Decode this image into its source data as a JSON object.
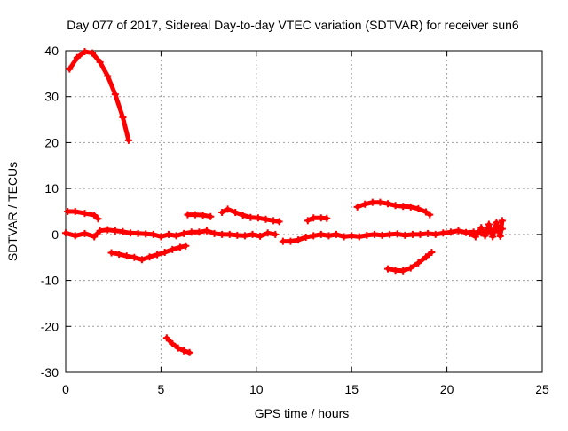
{
  "chart_data": {
    "type": "scatter",
    "title": "Day 077 of 2017, Sidereal Day-to-day VTEC variation (SDTVAR) for receiver sun6",
    "xlabel": "GPS time / hours",
    "ylabel": "SDTVAR / TECUs",
    "xlim": [
      0,
      25
    ],
    "ylim": [
      -30,
      40
    ],
    "xticks": [
      0,
      5,
      10,
      15,
      20,
      25
    ],
    "yticks": [
      -30,
      -20,
      -10,
      0,
      10,
      20,
      30,
      40
    ],
    "grid": true,
    "legend": "none",
    "marker": "plus",
    "series_color": "#ff0000",
    "segments": [
      {
        "name": "arc-high",
        "points": [
          [
            0.2,
            36
          ],
          [
            0.6,
            38.5
          ],
          [
            1.0,
            39.8
          ],
          [
            1.4,
            39.5
          ],
          [
            1.8,
            37.5
          ],
          [
            2.2,
            34.5
          ],
          [
            2.6,
            30.5
          ],
          [
            3.0,
            25.5
          ],
          [
            3.3,
            20.5
          ]
        ]
      },
      {
        "name": "arc-5-early",
        "points": [
          [
            0.1,
            5
          ],
          [
            0.5,
            5
          ],
          [
            1.0,
            4.6
          ],
          [
            1.5,
            4.2
          ],
          [
            1.7,
            3.4
          ]
        ]
      },
      {
        "name": "arc-0-main",
        "points": [
          [
            0.0,
            0.3
          ],
          [
            0.5,
            -0.3
          ],
          [
            1.0,
            0.2
          ],
          [
            1.5,
            -0.5
          ],
          [
            1.8,
            0.8
          ],
          [
            2.2,
            1.0
          ],
          [
            2.6,
            0.8
          ],
          [
            3.0,
            0.6
          ],
          [
            3.4,
            0.3
          ],
          [
            3.8,
            0.2
          ],
          [
            4.2,
            0.1
          ],
          [
            4.6,
            0
          ],
          [
            5.0,
            -0.5
          ],
          [
            5.4,
            0
          ],
          [
            5.8,
            -0.3
          ],
          [
            6.2,
            0.2
          ],
          [
            6.6,
            0.5
          ],
          [
            7.0,
            0.5
          ],
          [
            7.4,
            0.8
          ],
          [
            7.8,
            0.2
          ],
          [
            8.2,
            0
          ],
          [
            8.6,
            0
          ],
          [
            9.0,
            -0.2
          ],
          [
            9.4,
            -0.3
          ],
          [
            9.8,
            0
          ],
          [
            10.2,
            -0.4
          ],
          [
            10.6,
            0.3
          ],
          [
            11.0,
            0
          ]
        ]
      },
      {
        "name": "arc-neg5",
        "points": [
          [
            2.4,
            -4
          ],
          [
            2.8,
            -4.3
          ],
          [
            3.2,
            -4.7
          ],
          [
            3.6,
            -5.0
          ],
          [
            4.0,
            -5.5
          ],
          [
            4.4,
            -4.9
          ],
          [
            4.8,
            -4.4
          ],
          [
            5.2,
            -3.9
          ],
          [
            5.6,
            -3.3
          ],
          [
            6.0,
            -2.8
          ],
          [
            6.3,
            -2.5
          ]
        ]
      },
      {
        "name": "arc-neg25",
        "points": [
          [
            5.3,
            -22.5
          ],
          [
            5.6,
            -23.8
          ],
          [
            5.9,
            -24.7
          ],
          [
            6.2,
            -25.3
          ],
          [
            6.5,
            -25.7
          ]
        ]
      },
      {
        "name": "arc-4-mid",
        "points": [
          [
            6.4,
            4.3
          ],
          [
            6.8,
            4.3
          ],
          [
            7.2,
            4.2
          ],
          [
            7.6,
            3.9
          ]
        ]
      },
      {
        "name": "arc-5-nine",
        "points": [
          [
            8.2,
            4.8
          ],
          [
            8.5,
            5.5
          ],
          [
            8.9,
            4.8
          ],
          [
            9.3,
            4.2
          ],
          [
            9.7,
            3.7
          ],
          [
            10.1,
            3.6
          ],
          [
            10.5,
            3.3
          ],
          [
            10.9,
            3.0
          ],
          [
            11.2,
            2.8
          ]
        ]
      },
      {
        "name": "arc-0-mid",
        "points": [
          [
            11.4,
            -1.5
          ],
          [
            11.8,
            -1.5
          ],
          [
            12.2,
            -1.2
          ],
          [
            12.6,
            -0.6
          ],
          [
            13.0,
            -0.3
          ],
          [
            13.4,
            0
          ],
          [
            13.8,
            -0.3
          ],
          [
            14.2,
            0
          ],
          [
            14.6,
            -0.5
          ],
          [
            15.0,
            -0.3
          ],
          [
            15.4,
            -0.5
          ],
          [
            15.8,
            -0.2
          ],
          [
            16.2,
            0
          ],
          [
            16.6,
            -0.2
          ],
          [
            17.0,
            0
          ],
          [
            17.4,
            0.1
          ],
          [
            17.8,
            -0.2
          ],
          [
            18.2,
            0
          ],
          [
            18.6,
            0
          ],
          [
            19.0,
            0.2
          ],
          [
            19.4,
            0
          ],
          [
            19.8,
            0.3
          ],
          [
            20.2,
            0.5
          ],
          [
            20.6,
            0.8
          ],
          [
            21.0,
            0.4
          ],
          [
            21.4,
            0.5
          ],
          [
            21.8,
            0.3
          ],
          [
            22.2,
            0.8
          ],
          [
            22.6,
            1.0
          ],
          [
            22.9,
            1.2
          ]
        ]
      },
      {
        "name": "arc-3-thirteen",
        "points": [
          [
            12.7,
            3.0
          ],
          [
            13.0,
            3.6
          ],
          [
            13.4,
            3.6
          ],
          [
            13.7,
            3.5
          ]
        ]
      },
      {
        "name": "arc-6-sixteen",
        "points": [
          [
            15.3,
            6.0
          ],
          [
            15.7,
            6.6
          ],
          [
            16.1,
            7.0
          ],
          [
            16.5,
            7.0
          ],
          [
            16.9,
            6.7
          ],
          [
            17.3,
            6.3
          ],
          [
            17.7,
            6.1
          ],
          [
            18.1,
            6.0
          ],
          [
            18.5,
            5.6
          ],
          [
            18.9,
            4.9
          ],
          [
            19.1,
            4.3
          ]
        ]
      },
      {
        "name": "arc-neg7",
        "points": [
          [
            16.9,
            -7.5
          ],
          [
            17.3,
            -7.8
          ],
          [
            17.7,
            -7.9
          ],
          [
            18.1,
            -7.3
          ],
          [
            18.5,
            -6.2
          ],
          [
            18.9,
            -4.9
          ],
          [
            19.2,
            -3.9
          ]
        ]
      },
      {
        "name": "arc-spread-end",
        "points": [
          [
            21.2,
            0.2
          ],
          [
            21.5,
            -0.5
          ],
          [
            21.8,
            1.5
          ],
          [
            22.0,
            -0.3
          ],
          [
            22.2,
            2.2
          ],
          [
            22.4,
            -0.5
          ],
          [
            22.6,
            2.6
          ],
          [
            22.8,
            -0.4
          ],
          [
            22.9,
            3.0
          ]
        ]
      }
    ]
  }
}
